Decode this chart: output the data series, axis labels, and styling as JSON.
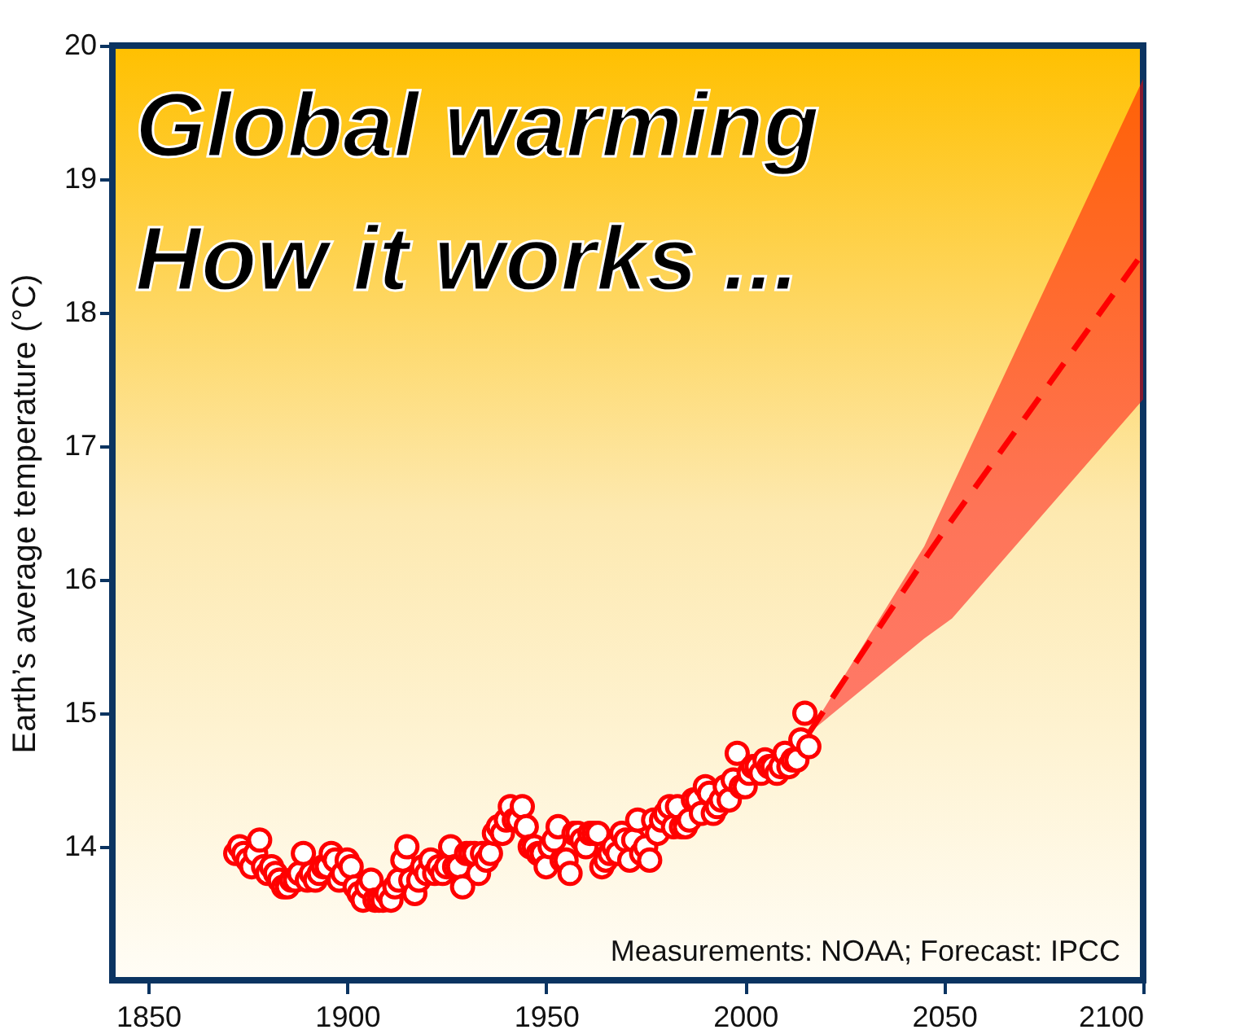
{
  "chart_data": {
    "type": "scatter",
    "title": "Global warming",
    "subtitle": "How it works ...",
    "ylabel": "Earth’s average temperature (°C)",
    "annotations": [
      "Measurements: NOAA; Forecast: IPCC"
    ],
    "xlim": [
      1841,
      2100
    ],
    "ylim": [
      13,
      20
    ],
    "xticks": [
      1850,
      1900,
      1950,
      2000,
      2050,
      2100
    ],
    "yticks": [
      14,
      15,
      16,
      17,
      18,
      19,
      20
    ],
    "grid": false,
    "line_style": "dashed",
    "series": [
      {
        "color": "#ff0000",
        "marker": "circle",
        "x": [
          1872,
          1873,
          1874,
          1875,
          1876,
          1877,
          1878,
          1879,
          1880,
          1881,
          1882,
          1883,
          1884,
          1885,
          1886,
          1887,
          1888,
          1889,
          1890,
          1891,
          1892,
          1893,
          1894,
          1895,
          1896,
          1897,
          1898,
          1899,
          1900,
          1901,
          1902,
          1903,
          1904,
          1905,
          1906,
          1907,
          1908,
          1909,
          1910,
          1911,
          1912,
          1913,
          1914,
          1915,
          1916,
          1917,
          1918,
          1919,
          1920,
          1921,
          1922,
          1923,
          1924,
          1925,
          1926,
          1927,
          1928,
          1929,
          1930,
          1931,
          1932,
          1933,
          1934,
          1935,
          1936,
          1937,
          1938,
          1939,
          1940,
          1941,
          1942,
          1943,
          1944,
          1945,
          1946,
          1947,
          1948,
          1949,
          1950,
          1951,
          1952,
          1953,
          1954,
          1955,
          1956,
          1957,
          1958,
          1959,
          1960,
          1961,
          1962,
          1963,
          1964,
          1965,
          1966,
          1967,
          1968,
          1969,
          1970,
          1971,
          1972,
          1973,
          1974,
          1975,
          1976,
          1977,
          1978,
          1979,
          1980,
          1981,
          1982,
          1983,
          1984,
          1985,
          1986,
          1987,
          1988,
          1989,
          1990,
          1991,
          1992,
          1993,
          1994,
          1995,
          1996,
          1997,
          1998,
          1999,
          2000,
          2001,
          2002,
          2003,
          2004,
          2005,
          2006,
          2007,
          2008,
          2009,
          2010,
          2011,
          2012,
          2013,
          2014,
          2015,
          2016
        ],
        "values": [
          13.95,
          14.0,
          13.95,
          13.9,
          13.85,
          13.95,
          14.05,
          13.85,
          13.8,
          13.85,
          13.8,
          13.75,
          13.7,
          13.7,
          13.75,
          13.75,
          13.8,
          13.95,
          13.75,
          13.8,
          13.75,
          13.8,
          13.85,
          13.85,
          13.95,
          13.9,
          13.75,
          13.8,
          13.9,
          13.85,
          13.7,
          13.65,
          13.6,
          13.7,
          13.75,
          13.6,
          13.6,
          13.6,
          13.65,
          13.6,
          13.7,
          13.75,
          13.9,
          14.0,
          13.75,
          13.65,
          13.75,
          13.85,
          13.8,
          13.9,
          13.8,
          13.85,
          13.8,
          13.85,
          14.0,
          13.85,
          13.85,
          13.7,
          13.95,
          13.95,
          13.95,
          13.8,
          13.95,
          13.9,
          13.95,
          14.1,
          14.15,
          14.1,
          14.2,
          14.3,
          14.2,
          14.2,
          14.3,
          14.15,
          14.0,
          14.0,
          13.95,
          13.95,
          13.85,
          14.0,
          14.05,
          14.15,
          13.9,
          13.9,
          13.8,
          14.1,
          14.1,
          14.05,
          14.0,
          14.1,
          14.1,
          14.1,
          13.85,
          13.9,
          13.95,
          14.0,
          13.95,
          14.1,
          14.05,
          13.9,
          14.05,
          14.2,
          13.95,
          14.0,
          13.9,
          14.2,
          14.1,
          14.2,
          14.25,
          14.3,
          14.15,
          14.3,
          14.15,
          14.15,
          14.2,
          14.35,
          14.35,
          14.25,
          14.45,
          14.4,
          14.25,
          14.3,
          14.35,
          14.45,
          14.35,
          14.5,
          14.7,
          14.45,
          14.45,
          14.55,
          14.6,
          14.6,
          14.55,
          14.65,
          14.6,
          14.6,
          14.55,
          14.6,
          14.7,
          14.6,
          14.65,
          14.65,
          14.8,
          15.0,
          14.75
        ]
      },
      {
        "type": "line",
        "color": "#ff0000",
        "x": [
          2016,
          2045,
          2052,
          2100
        ],
        "values": [
          14.85,
          16.15,
          16.45,
          18.45
        ],
        "lower": [
          14.85,
          15.56,
          15.71,
          17.35
        ],
        "upper": [
          14.85,
          16.25,
          16.7,
          19.75
        ]
      }
    ]
  }
}
